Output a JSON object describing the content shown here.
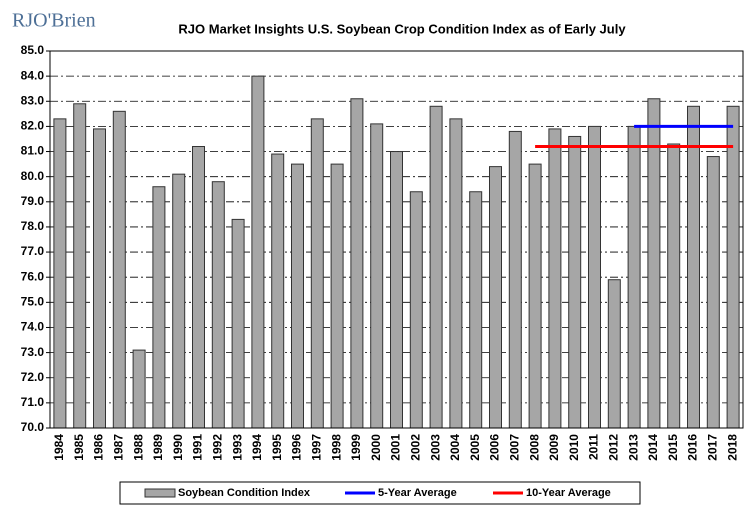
{
  "chart_data": {
    "type": "bar",
    "logo": "RJO'Brien",
    "title": "RJO Market Insights U.S. Soybean Crop Condition Index as of Early July",
    "categories": [
      "1984",
      "1985",
      "1986",
      "1987",
      "1988",
      "1989",
      "1990",
      "1991",
      "1992",
      "1993",
      "1994",
      "1995",
      "1996",
      "1997",
      "1998",
      "1999",
      "2000",
      "2001",
      "2002",
      "2003",
      "2004",
      "2005",
      "2006",
      "2007",
      "2008",
      "2009",
      "2010",
      "2011",
      "2012",
      "2013",
      "2014",
      "2015",
      "2016",
      "2017",
      "2018"
    ],
    "series": [
      {
        "name": "Soybean Condition Index",
        "type": "bar",
        "color": "#a6a6a6",
        "values": [
          82.3,
          82.9,
          81.9,
          82.6,
          73.1,
          79.6,
          80.1,
          81.2,
          79.8,
          78.3,
          84.0,
          80.9,
          80.5,
          82.3,
          80.5,
          83.1,
          82.1,
          81.0,
          79.4,
          82.8,
          82.3,
          79.4,
          80.4,
          81.8,
          80.5,
          81.9,
          81.6,
          82.0,
          75.9,
          82.0,
          83.1,
          81.3,
          82.8,
          80.8,
          82.8
        ]
      },
      {
        "name": "5-Year Average",
        "type": "line",
        "color": "#0000ff",
        "values": [
          null,
          null,
          null,
          null,
          null,
          null,
          null,
          null,
          null,
          null,
          null,
          null,
          null,
          null,
          null,
          null,
          null,
          null,
          null,
          null,
          null,
          null,
          null,
          null,
          null,
          null,
          null,
          null,
          null,
          82.0,
          82.0,
          82.0,
          82.0,
          82.0,
          82.0
        ]
      },
      {
        "name": "10-Year Average",
        "type": "line",
        "color": "#ff0000",
        "values": [
          null,
          null,
          null,
          null,
          null,
          null,
          null,
          null,
          null,
          null,
          null,
          null,
          null,
          null,
          null,
          null,
          null,
          null,
          null,
          null,
          null,
          null,
          null,
          null,
          81.2,
          81.2,
          81.2,
          81.2,
          81.2,
          81.2,
          81.2,
          81.2,
          81.2,
          81.2,
          81.2
        ]
      }
    ],
    "ylim": [
      70,
      85
    ],
    "yticks": [
      {
        "value": 70,
        "label": "70.0"
      },
      {
        "value": 71,
        "label": "71.0"
      },
      {
        "value": 72,
        "label": "72.0"
      },
      {
        "value": 73,
        "label": "73.0"
      },
      {
        "value": 74,
        "label": "74.0"
      },
      {
        "value": 75,
        "label": "75.0"
      },
      {
        "value": 76,
        "label": "76.0"
      },
      {
        "value": 77,
        "label": "77.0"
      },
      {
        "value": 78,
        "label": "78.0"
      },
      {
        "value": 79,
        "label": "79.0"
      },
      {
        "value": 80,
        "label": "80.0"
      },
      {
        "value": 81,
        "label": "81.0"
      },
      {
        "value": 82,
        "label": "82.0"
      },
      {
        "value": 83,
        "label": "83.0"
      },
      {
        "value": 84,
        "label": "84.0"
      },
      {
        "value": 85,
        "label": "85.0"
      }
    ],
    "grid": true,
    "legend": "bottom"
  }
}
